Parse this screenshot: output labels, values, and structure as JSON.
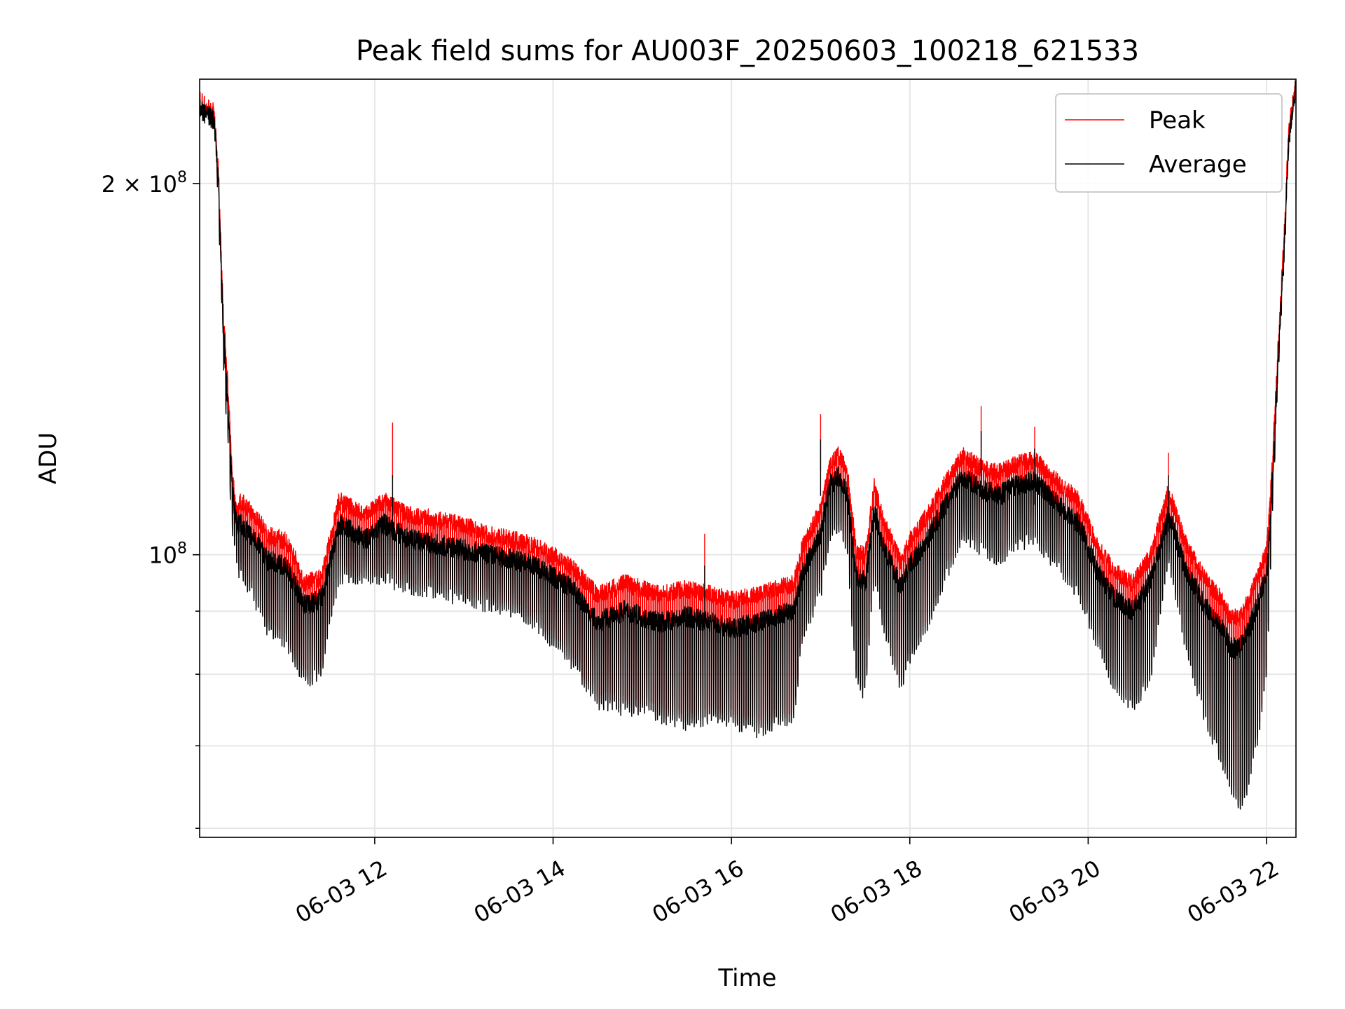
{
  "chart_data": {
    "type": "line",
    "title": "Peak field sums for AU003F_20250603_100218_621533",
    "xlabel": "Time",
    "ylabel": "ADU",
    "y_scale": "log",
    "ylim": [
      59000000,
      243000000
    ],
    "xlim_hours": [
      10.037,
      22.33
    ],
    "grid": true,
    "legend_location": "upper right",
    "x_ticks": [
      {
        "hour": 12,
        "label": "06-03 12"
      },
      {
        "hour": 14,
        "label": "06-03 14"
      },
      {
        "hour": 16,
        "label": "06-03 16"
      },
      {
        "hour": 18,
        "label": "06-03 18"
      },
      {
        "hour": 20,
        "label": "06-03 20"
      },
      {
        "hour": 22,
        "label": "06-03 22"
      }
    ],
    "y_ticks": [
      {
        "value": 100000000,
        "mantissa": "10",
        "exponent": "8",
        "major": true
      },
      {
        "value": 200000000,
        "mantissa": "2 × 10",
        "exponent": "8",
        "major": true
      },
      {
        "value": 60000000,
        "major": false
      },
      {
        "value": 70000000,
        "major": false
      },
      {
        "value": 80000000,
        "major": false
      },
      {
        "value": 90000000,
        "major": false
      }
    ],
    "series": [
      {
        "name": "Peak",
        "color": "#ff0000",
        "line_width": 1
      },
      {
        "name": "Average",
        "color": "#000000",
        "line_width": 1
      }
    ],
    "envelope": {
      "hours": [
        10.04,
        10.2,
        10.25,
        10.3,
        10.35,
        10.4,
        10.45,
        10.5,
        10.55,
        10.6,
        10.65,
        10.7,
        10.8,
        11.0,
        11.1,
        11.2,
        11.4,
        11.6,
        11.7,
        11.9,
        12.1,
        12.2,
        12.4,
        12.7,
        13.0,
        13.3,
        13.6,
        13.8,
        14.0,
        14.2,
        14.5,
        14.8,
        15.0,
        15.2,
        15.5,
        15.8,
        16.0,
        16.3,
        16.5,
        16.7,
        16.8,
        17.0,
        17.1,
        17.2,
        17.3,
        17.4,
        17.5,
        17.6,
        17.7,
        17.9,
        18.0,
        18.2,
        18.4,
        18.6,
        18.8,
        19.0,
        19.2,
        19.4,
        19.6,
        19.9,
        20.1,
        20.3,
        20.5,
        20.7,
        20.9,
        21.1,
        21.3,
        21.5,
        21.6,
        21.7,
        21.8,
        21.9,
        22.0,
        22.05,
        22.1,
        22.15,
        22.2,
        22.25,
        22.33
      ],
      "peak_hi": [
        232000000,
        230000000,
        205000000,
        160000000,
        140000000,
        118000000,
        110000000,
        112000000,
        111000000,
        110000000,
        109000000,
        108000000,
        105000000,
        104000000,
        101000000,
        96000000,
        97000000,
        112000000,
        111000000,
        109000000,
        112000000,
        111000000,
        109000000,
        108000000,
        107000000,
        105000000,
        104000000,
        103000000,
        101000000,
        99000000,
        94000000,
        96000000,
        95000000,
        94000000,
        95000000,
        94000000,
        93000000,
        94000000,
        95000000,
        96000000,
        103000000,
        110000000,
        120000000,
        122000000,
        118000000,
        102000000,
        101000000,
        115000000,
        108000000,
        100000000,
        104000000,
        109000000,
        116000000,
        122000000,
        119000000,
        118000000,
        120000000,
        121000000,
        117000000,
        112000000,
        103000000,
        98000000,
        96000000,
        101000000,
        114000000,
        103000000,
        97000000,
        93000000,
        90000000,
        90000000,
        93000000,
        97000000,
        102000000,
        115000000,
        135000000,
        160000000,
        185000000,
        225000000,
        243000000
      ],
      "avg_hi": [
        231000000,
        228000000,
        200000000,
        155000000,
        135000000,
        115000000,
        107000000,
        107000000,
        106000000,
        105000000,
        104000000,
        103000000,
        100000000,
        99000000,
        96000000,
        92000000,
        93000000,
        107000000,
        106000000,
        104000000,
        107000000,
        106000000,
        104000000,
        103000000,
        102000000,
        101000000,
        100000000,
        99000000,
        97000000,
        95000000,
        89000000,
        91000000,
        90000000,
        89000000,
        90000000,
        89000000,
        88000000,
        89000000,
        90000000,
        91000000,
        98000000,
        105000000,
        115000000,
        117000000,
        113000000,
        97000000,
        96000000,
        110000000,
        103000000,
        95000000,
        99000000,
        104000000,
        111000000,
        117000000,
        114000000,
        113000000,
        115000000,
        116000000,
        112000000,
        107000000,
        98000000,
        93000000,
        91000000,
        96000000,
        109000000,
        98000000,
        92000000,
        88000000,
        85000000,
        85000000,
        88000000,
        92000000,
        97000000,
        110000000,
        130000000,
        155000000,
        180000000,
        220000000,
        243000000
      ],
      "avg_lo": [
        231000000,
        226000000,
        190000000,
        145000000,
        125000000,
        105000000,
        98000000,
        96000000,
        95000000,
        94000000,
        92000000,
        90000000,
        87000000,
        85000000,
        82000000,
        79000000,
        80000000,
        96000000,
        96000000,
        95000000,
        96000000,
        95000000,
        94000000,
        93000000,
        92000000,
        91000000,
        90000000,
        88000000,
        85000000,
        82000000,
        76000000,
        75000000,
        75000000,
        74000000,
        73000000,
        74000000,
        73000000,
        72000000,
        73000000,
        74000000,
        86000000,
        93000000,
        103000000,
        105000000,
        100000000,
        79000000,
        77000000,
        96000000,
        88000000,
        78000000,
        82000000,
        88000000,
        96000000,
        104000000,
        101000000,
        99000000,
        102000000,
        103000000,
        99000000,
        93000000,
        85000000,
        78000000,
        75000000,
        80000000,
        99000000,
        84000000,
        74000000,
        68000000,
        64000000,
        62000000,
        65000000,
        71000000,
        80000000,
        100000000,
        125000000,
        150000000,
        175000000,
        215000000,
        243000000
      ]
    },
    "spikes": [
      {
        "hour": 12.2,
        "peak": 128000000,
        "avg": 116000000
      },
      {
        "hour": 15.7,
        "peak": 104000000,
        "avg": 98000000
      },
      {
        "hour": 17.0,
        "peak": 130000000,
        "avg": 124000000
      },
      {
        "hour": 18.8,
        "peak": 132000000,
        "avg": 126000000
      },
      {
        "hour": 19.4,
        "peak": 127000000,
        "avg": 122000000
      },
      {
        "hour": 20.9,
        "peak": 121000000,
        "avg": 116000000
      }
    ]
  }
}
